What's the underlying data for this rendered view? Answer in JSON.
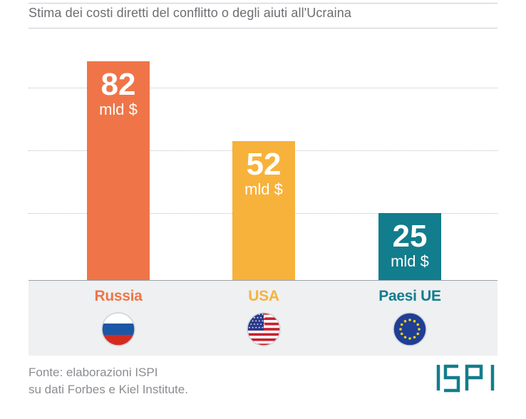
{
  "title": "Stima dei costi diretti del conflitto o degli aiuti all'Ucraina",
  "chart_data": {
    "type": "bar",
    "title": "Stima dei costi diretti del conflitto o degli aiuti all'Ucraina",
    "categories": [
      "Russia",
      "USA",
      "Paesi UE"
    ],
    "values": [
      82,
      52,
      25
    ],
    "unit": "mld $",
    "value_labels": [
      "82",
      "52",
      "25"
    ],
    "bar_colors": [
      "#ef7548",
      "#f7b23b",
      "#127d8c"
    ],
    "label_colors": [
      "#ef7548",
      "#f7b23b",
      "#127d8c"
    ],
    "ylim": [
      0,
      82
    ],
    "gridlines": [
      25,
      48.5,
      72
    ],
    "xlabel": "",
    "ylabel": ""
  },
  "flags": [
    {
      "country": "Russia",
      "icon": "russia-flag-icon"
    },
    {
      "country": "USA",
      "icon": "usa-flag-icon"
    },
    {
      "country": "Paesi UE",
      "icon": "eu-flag-icon"
    }
  ],
  "source": {
    "line1": "Fonte: elaborazioni ISPI",
    "line2": "su dati Forbes e Kiel Institute."
  },
  "logo": {
    "text": "ISPI",
    "color": "#127d8c"
  }
}
